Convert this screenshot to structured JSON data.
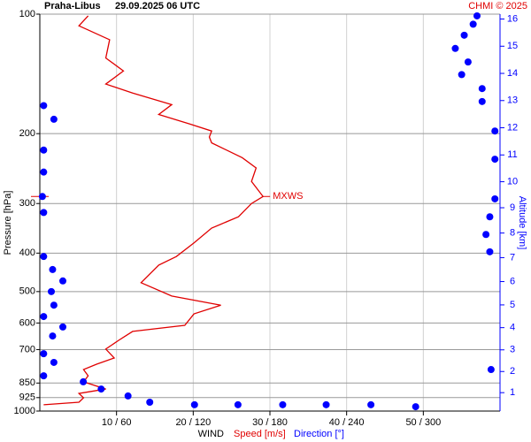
{
  "chart_data": {
    "type": "line",
    "station": "Praha-Libus",
    "time": "29.09.2025 06 UTC",
    "credit": "CHMI © 2025",
    "xlabel": "WIND",
    "ylabel": "Pressure [hPa]",
    "y2label": "Altitude [km]",
    "annotation": "MXWS",
    "yscale": "log",
    "ylim": [
      1000,
      100
    ],
    "yticks": [
      100,
      200,
      300,
      400,
      500,
      600,
      700,
      850,
      925,
      1000
    ],
    "xlim": [
      0,
      60
    ],
    "x2lim": [
      0,
      360
    ],
    "xticks": [
      {
        "value": 10,
        "label": "10 / 60"
      },
      {
        "value": 20,
        "label": "20 / 120"
      },
      {
        "value": 30,
        "label": "30 / 180"
      },
      {
        "value": 40,
        "label": "40 / 240"
      },
      {
        "value": 50,
        "label": "50 / 300"
      }
    ],
    "y2ticks": [
      1,
      2,
      3,
      4,
      5,
      6,
      7,
      8,
      9,
      10,
      11,
      12,
      13,
      14,
      15,
      16
    ],
    "grid": true,
    "series": [
      {
        "name": "Speed [m/s]",
        "color": "#e00000",
        "style": "line",
        "pressure": [
          964,
          950,
          926,
          903,
          880,
          844,
          815,
          786,
          762,
          735,
          698,
          663,
          630,
          608,
          569,
          541,
          513,
          475,
          429,
          408,
          377,
          346,
          324,
          300,
          288,
          264,
          244,
          230,
          211,
          204,
          197,
          189,
          179,
          169,
          158,
          150,
          139,
          129,
          116,
          107,
          101
        ],
        "values": [
          0.5,
          5.1,
          5.7,
          5.1,
          8.6,
          5.7,
          6.3,
          5.7,
          7.4,
          9.7,
          8.6,
          10.3,
          12.1,
          18.9,
          20.1,
          23.6,
          17.2,
          13.2,
          15.5,
          17.8,
          20.1,
          22.4,
          25.9,
          27.6,
          29.1,
          27.6,
          28.2,
          26.4,
          22.4,
          22.1,
          22.4,
          19.5,
          15.5,
          17.2,
          12.1,
          8.6,
          10.9,
          8.6,
          9.1,
          5.1,
          6.3
        ]
      },
      {
        "name": "Direction [°]",
        "color": "#0000ff",
        "style": "dots",
        "axis": "x2",
        "pressure": [
          975,
          964,
          964,
          964,
          964,
          964,
          950,
          916,
          880,
          844,
          815,
          786,
          754,
          717,
          647,
          614,
          578,
          541,
          500,
          470,
          440,
          408,
          397,
          359,
          324,
          316,
          292,
          288,
          250,
          232,
          220,
          197,
          184,
          170,
          166,
          154,
          142,
          132,
          122,
          113,
          106,
          101
        ],
        "values": [
          294,
          259,
          224,
          190,
          155,
          121,
          86,
          69,
          48,
          34,
          3,
          353,
          11,
          3,
          10,
          18,
          3,
          11,
          9,
          18,
          10,
          3,
          352,
          349,
          352,
          3,
          356,
          2,
          3,
          356,
          3,
          356,
          11,
          3,
          346,
          346,
          330,
          335,
          325,
          332,
          339,
          342
        ]
      }
    ]
  }
}
